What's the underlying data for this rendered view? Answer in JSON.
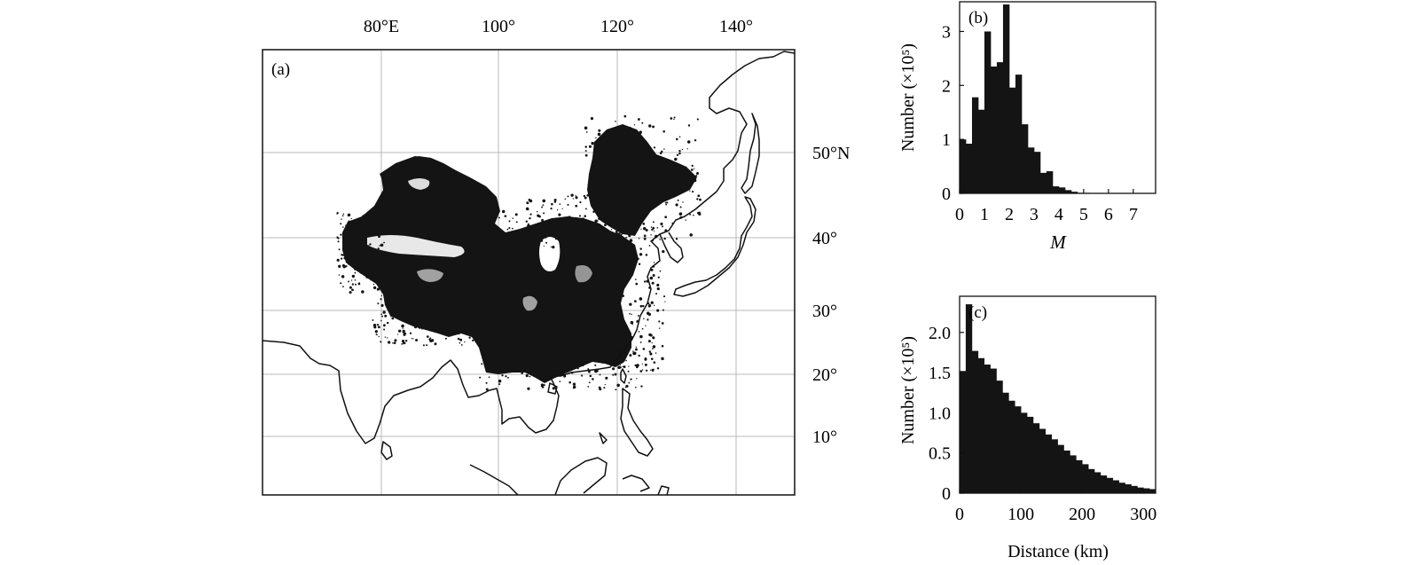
{
  "map": {
    "panel_label": "(a)",
    "lon_labels": [
      "80°E",
      "100°",
      "120°",
      "140°"
    ],
    "lat_labels": [
      "50°N",
      "40°",
      "30°",
      "20°",
      "10°"
    ]
  },
  "chart_data": [
    {
      "type": "bar",
      "panel_label": "(b)",
      "xlabel": "M",
      "ylabel": "Number (×10⁵)",
      "xticks": [
        "0",
        "1",
        "2",
        "3",
        "4",
        "5",
        "6",
        "7"
      ],
      "yticks": [
        "0",
        "1",
        "2",
        "3"
      ],
      "xlim": [
        0,
        7.9
      ],
      "ylim": [
        0,
        3.55
      ],
      "bin_width": 0.25,
      "bin_start": 0,
      "values": [
        1.0,
        0.92,
        1.78,
        1.55,
        3.0,
        2.35,
        2.43,
        3.5,
        1.96,
        2.2,
        1.28,
        0.85,
        0.77,
        0.38,
        0.41,
        0.13,
        0.11,
        0.06,
        0.03,
        0.01,
        0.01,
        0.005,
        0.004,
        0.003,
        0.002,
        0.001,
        0.001,
        0.001
      ]
    },
    {
      "type": "bar",
      "panel_label": "(c)",
      "xlabel": "Distance (km)",
      "ylabel": "Number (×10⁵)",
      "xticks": [
        "0",
        "100",
        "200",
        "300"
      ],
      "yticks": [
        "0",
        "0.5",
        "1.0",
        "1.5",
        "2.0"
      ],
      "xlim": [
        0,
        320
      ],
      "ylim": [
        0,
        2.45
      ],
      "bin_width": 10,
      "bin_start": 0,
      "values": [
        1.52,
        2.35,
        1.77,
        1.68,
        1.6,
        1.55,
        1.4,
        1.25,
        1.15,
        1.08,
        1.0,
        0.95,
        0.87,
        0.8,
        0.73,
        0.67,
        0.6,
        0.53,
        0.47,
        0.41,
        0.36,
        0.3,
        0.26,
        0.22,
        0.19,
        0.16,
        0.13,
        0.11,
        0.09,
        0.07,
        0.06,
        0.05
      ]
    }
  ]
}
